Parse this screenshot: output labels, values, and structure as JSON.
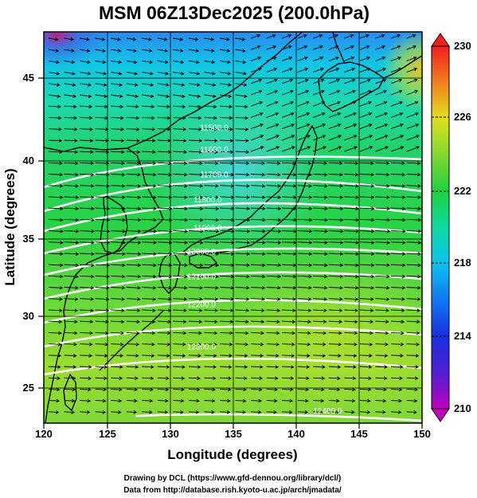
{
  "title": "MSM 06Z13Dec2025 (200.0hPa)",
  "xlabel": "Longitude (degrees)",
  "ylabel": "Latitude  (degrees)",
  "x_ticks": [
    "120",
    "125",
    "130",
    "135",
    "140",
    "145",
    "150"
  ],
  "y_ticks": [
    "25",
    "30",
    "35",
    "40",
    "45"
  ],
  "colorbar_ticks": [
    "210",
    "214",
    "218",
    "222",
    "226",
    "230"
  ],
  "credits": {
    "line1": "Drawing by DCL (https://www.gfd-dennou.org/library/dcl/)",
    "line2": "Data from http://database.rish.kyoto-u.ac.jp/arch/jmadata/"
  },
  "colors": {
    "shading_low": "#c000c0",
    "shading_218": "#00d0e0",
    "shading_222": "#20d040",
    "shading_226": "#e0e020",
    "shading_high": "#f04040",
    "contour": "#ffffff",
    "wind_vector": "#000000",
    "coastline": "#000000"
  },
  "chart_data": {
    "type": "contour map",
    "lon_range": [
      120,
      150
    ],
    "lat_range": [
      22.5,
      47.5
    ],
    "shading_variable_range": [
      210,
      230
    ],
    "height_contours": [
      {
        "label": "11500.0",
        "lon": 133.5,
        "lat": 41.2
      },
      {
        "label": "11600.0",
        "lon": 133.5,
        "lat": 39.8
      },
      {
        "label": "11700.0",
        "lon": 133.5,
        "lat": 38.2
      },
      {
        "label": "11800.0",
        "lon": 133.0,
        "lat": 36.6
      },
      {
        "label": "11900.0",
        "lon": 133.0,
        "lat": 34.8
      },
      {
        "label": "12000.0",
        "lon": 132.5,
        "lat": 33.3
      },
      {
        "label": "12100.0",
        "lon": 132.5,
        "lat": 31.7
      },
      {
        "label": "12200.0",
        "lon": 132.5,
        "lat": 29.9
      },
      {
        "label": "12300.0",
        "lon": 132.5,
        "lat": 27.2
      },
      {
        "label": "12400.0",
        "lon": 142.5,
        "lat": 23.1
      }
    ],
    "wind": "westerly vectors across the domain, strongest in mid-latitudes",
    "grid": true
  }
}
